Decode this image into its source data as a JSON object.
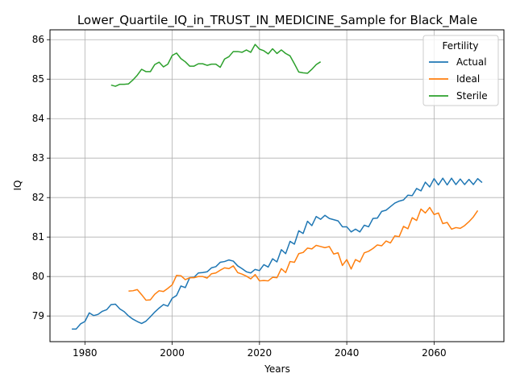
{
  "chart_data": {
    "type": "line",
    "title": "Lower_Quartile_IQ_in_TRUST_IN_MEDICINE_Sample for Black_Male",
    "xlabel": "Years",
    "ylabel": "IQ",
    "xlim": [
      1972,
      2076
    ],
    "ylim": [
      78.35,
      86.25
    ],
    "xticks": [
      1980,
      2000,
      2020,
      2040,
      2060
    ],
    "yticks": [
      79,
      80,
      81,
      82,
      83,
      84,
      85,
      86
    ],
    "grid": true,
    "legend": {
      "title": "Fertility",
      "placement": "top-right"
    },
    "series": [
      {
        "name": "Actual",
        "color": "#1f77b4",
        "x_start": 1977,
        "values": [
          78.67,
          78.67,
          78.8,
          78.86,
          79.08,
          79.01,
          79.04,
          79.12,
          79.16,
          79.29,
          79.3,
          79.18,
          79.11,
          79.0,
          78.92,
          78.86,
          78.81,
          78.87,
          78.98,
          79.1,
          79.2,
          79.29,
          79.25,
          79.45,
          79.52,
          79.76,
          79.72,
          79.97,
          79.98,
          80.09,
          80.1,
          80.12,
          80.22,
          80.25,
          80.36,
          80.38,
          80.42,
          80.39,
          80.27,
          80.2,
          80.12,
          80.09,
          80.18,
          80.15,
          80.3,
          80.24,
          80.45,
          80.37,
          80.68,
          80.58,
          80.89,
          80.82,
          81.16,
          81.09,
          81.4,
          81.29,
          81.52,
          81.45,
          81.55,
          81.47,
          81.44,
          81.41,
          81.26,
          81.26,
          81.13,
          81.2,
          81.13,
          81.3,
          81.26,
          81.47,
          81.48,
          81.65,
          81.68,
          81.77,
          81.86,
          81.91,
          81.94,
          82.06,
          82.05,
          82.23,
          82.17,
          82.39,
          82.27,
          82.48,
          82.32,
          82.49,
          82.32,
          82.49,
          82.33,
          82.47,
          82.33,
          82.46,
          82.33,
          82.48,
          82.38
        ]
      },
      {
        "name": "Ideal",
        "color": "#ff7f0e",
        "x_start": 1990,
        "values": [
          79.63,
          79.64,
          79.67,
          79.54,
          79.4,
          79.41,
          79.55,
          79.64,
          79.62,
          79.7,
          79.79,
          80.03,
          80.02,
          79.92,
          79.97,
          79.97,
          80.0,
          80.0,
          79.96,
          80.07,
          80.09,
          80.16,
          80.22,
          80.2,
          80.27,
          80.1,
          80.06,
          80.01,
          79.94,
          80.05,
          79.89,
          79.9,
          79.89,
          79.98,
          79.97,
          80.2,
          80.1,
          80.38,
          80.36,
          80.58,
          80.61,
          80.72,
          80.7,
          80.79,
          80.76,
          80.73,
          80.76,
          80.57,
          80.6,
          80.28,
          80.43,
          80.19,
          80.43,
          80.37,
          80.6,
          80.64,
          80.71,
          80.8,
          80.78,
          80.9,
          80.85,
          81.03,
          81.01,
          81.27,
          81.21,
          81.49,
          81.42,
          81.71,
          81.61,
          81.75,
          81.57,
          81.61,
          81.34,
          81.37,
          81.2,
          81.24,
          81.22,
          81.29,
          81.39,
          81.51,
          81.67
        ]
      },
      {
        "name": "Sterile",
        "color": "#2ca02c",
        "x_start": 1986,
        "values": [
          84.85,
          84.82,
          84.87,
          84.87,
          84.88,
          84.98,
          85.1,
          85.25,
          85.19,
          85.19,
          85.37,
          85.43,
          85.31,
          85.38,
          85.6,
          85.66,
          85.52,
          85.44,
          85.33,
          85.33,
          85.39,
          85.39,
          85.35,
          85.38,
          85.38,
          85.3,
          85.51,
          85.57,
          85.7,
          85.7,
          85.68,
          85.74,
          85.68,
          85.88,
          85.76,
          85.72,
          85.64,
          85.77,
          85.65,
          85.74,
          85.65,
          85.59,
          85.39,
          85.18,
          85.16,
          85.15,
          85.25,
          85.37,
          85.44
        ]
      }
    ]
  }
}
